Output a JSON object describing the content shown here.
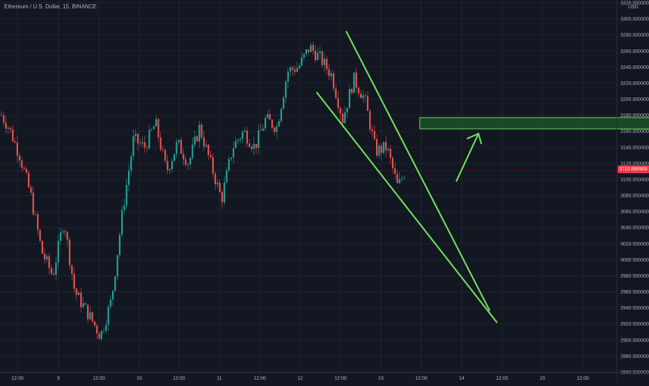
{
  "chart_data": {
    "type": "candlestick",
    "title": "Ethereum / U.S. Dollar, 15, BINANCE",
    "unit": "USD",
    "current_price": "3110.886900",
    "y_ticks": [
      "3320.000000",
      "3300.000000",
      "3280.000000",
      "3260.000000",
      "3240.000000",
      "3220.000000",
      "3200.000000",
      "3180.000000",
      "3160.000000",
      "3140.000000",
      "3120.000000",
      "3100.000000",
      "3080.000000",
      "3060.000000",
      "3040.000000",
      "3020.000000",
      "3000.000000",
      "2980.000000",
      "2960.000000",
      "2940.000000",
      "2920.000000",
      "2900.000000",
      "2880.000000",
      "2860.000000"
    ],
    "x_ticks": [
      "12:00",
      "9",
      "12:00",
      "10",
      "12:00",
      "11",
      "12:00",
      "12",
      "12:00",
      "13",
      "12:00",
      "14",
      "12:00",
      "15",
      "12:00"
    ],
    "ylim": [
      2860,
      3320
    ],
    "grid": true,
    "colors": {
      "up": "#26a69a",
      "down": "#ef5350",
      "lines": "#6ee05a",
      "zone": "#1e5a2c",
      "background": "#131722"
    },
    "price_path": [
      {
        "t": 0,
        "p": 3180
      },
      {
        "t": 2,
        "p": 3165
      },
      {
        "t": 5,
        "p": 3130
      },
      {
        "t": 8,
        "p": 3080
      },
      {
        "t": 11,
        "p": 3010
      },
      {
        "t": 14,
        "p": 2980
      },
      {
        "t": 17,
        "p": 3050
      },
      {
        "t": 20,
        "p": 2960
      },
      {
        "t": 24,
        "p": 2930
      },
      {
        "t": 27,
        "p": 2905
      },
      {
        "t": 30,
        "p": 2950
      },
      {
        "t": 33,
        "p": 3060
      },
      {
        "t": 36,
        "p": 3150
      },
      {
        "t": 39,
        "p": 3140
      },
      {
        "t": 42,
        "p": 3170
      },
      {
        "t": 45,
        "p": 3110
      },
      {
        "t": 48,
        "p": 3145
      },
      {
        "t": 51,
        "p": 3120
      },
      {
        "t": 54,
        "p": 3165
      },
      {
        "t": 57,
        "p": 3120
      },
      {
        "t": 60,
        "p": 3075
      },
      {
        "t": 63,
        "p": 3140
      },
      {
        "t": 66,
        "p": 3160
      },
      {
        "t": 69,
        "p": 3140
      },
      {
        "t": 72,
        "p": 3175
      },
      {
        "t": 75,
        "p": 3165
      },
      {
        "t": 78,
        "p": 3235
      },
      {
        "t": 81,
        "p": 3240
      },
      {
        "t": 84,
        "p": 3265
      },
      {
        "t": 87,
        "p": 3250
      },
      {
        "t": 90,
        "p": 3230
      },
      {
        "t": 93,
        "p": 3175
      },
      {
        "t": 96,
        "p": 3225
      },
      {
        "t": 99,
        "p": 3200
      },
      {
        "t": 102,
        "p": 3135
      },
      {
        "t": 105,
        "p": 3140
      },
      {
        "t": 108,
        "p": 3090
      },
      {
        "t": 110,
        "p": 3111
      }
    ],
    "annotations": {
      "wedge_upper": [
        {
          "t": 94,
          "p": 3284
        },
        {
          "t": 133,
          "p": 2937
        }
      ],
      "wedge_lower": [
        {
          "t": 86,
          "p": 3208
        },
        {
          "t": 135,
          "p": 2922
        }
      ],
      "target_zone": {
        "t0": 114,
        "t1": 184,
        "p0": 3163,
        "p1": 3177
      },
      "arrow": [
        {
          "t": 124,
          "p": 3098
        },
        {
          "t": 130,
          "p": 3157
        }
      ]
    }
  }
}
